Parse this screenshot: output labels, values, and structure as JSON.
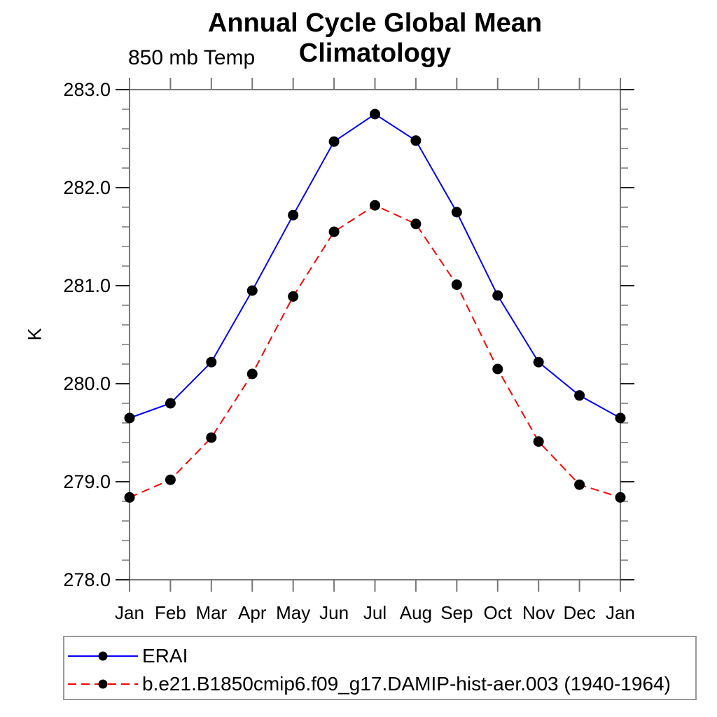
{
  "title": "Annual Cycle Global Mean Climatology",
  "subtitle": "850 mb Temp",
  "ylabel": "K",
  "colors": {
    "series1": "#0000ff",
    "series2": "#ff0000",
    "marker": "#000000",
    "axis": "#777777",
    "major_tick": "#222222",
    "text": "#000000",
    "legend_border": "#9a9a9a"
  },
  "chart_data": {
    "type": "line",
    "categories": [
      "Jan",
      "Feb",
      "Mar",
      "Apr",
      "May",
      "Jun",
      "Jul",
      "Aug",
      "Sep",
      "Oct",
      "Nov",
      "Dec",
      "Jan"
    ],
    "title": "Annual Cycle Global Mean Climatology",
    "subtitle": "850 mb Temp",
    "xlabel": "",
    "ylabel": "K",
    "ylim": [
      278.0,
      283.0
    ],
    "ytick_major_step": 1.0,
    "ytick_minor_step": 0.2,
    "ytick_labels": [
      "278.0",
      "279.0",
      "280.0",
      "281.0",
      "282.0",
      "283.0"
    ],
    "grid": false,
    "legend_position": "bottom-left",
    "series": [
      {
        "name": "ERAI",
        "color": "#0000ff",
        "line_style": "solid",
        "marker": "filled-circle",
        "marker_color": "#000000",
        "values": [
          279.65,
          279.8,
          280.22,
          280.95,
          281.72,
          282.47,
          282.75,
          282.48,
          281.75,
          280.9,
          280.22,
          279.88,
          279.65
        ]
      },
      {
        "name": "b.e21.B1850cmip6.f09_g17.DAMIP-hist-aer.003 (1940-1964)",
        "color": "#ff0000",
        "line_style": "dashed",
        "marker": "filled-circle",
        "marker_color": "#000000",
        "values": [
          278.84,
          279.02,
          279.45,
          280.1,
          280.89,
          281.55,
          281.82,
          281.63,
          281.01,
          280.15,
          279.41,
          278.97,
          278.84
        ]
      }
    ]
  }
}
